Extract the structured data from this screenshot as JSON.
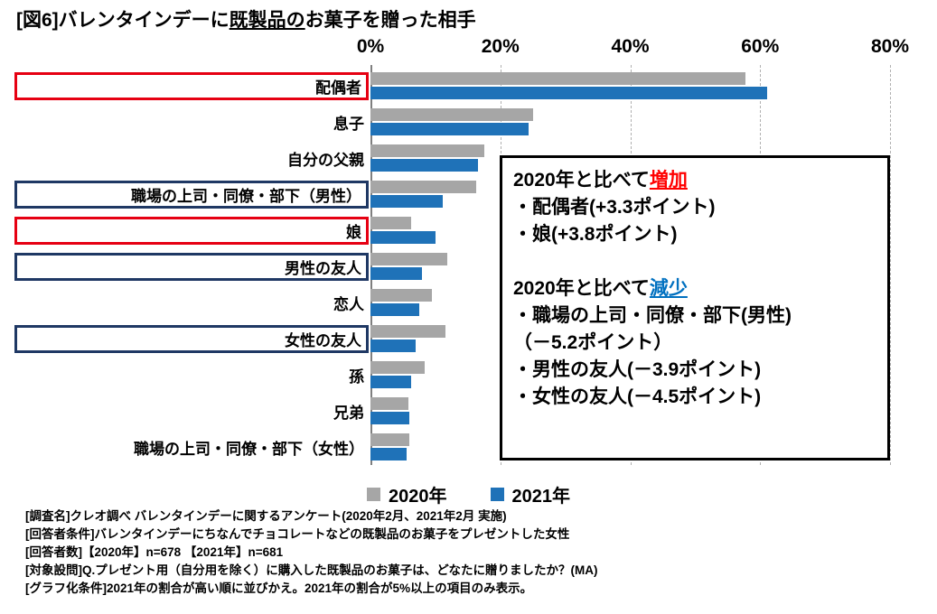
{
  "title": {
    "prefix": "[図6]バレンタインデーに",
    "underlined": "既製品の",
    "suffix": "お菓子を贈った相手"
  },
  "colors": {
    "bar_2020": "#a6a6a6",
    "bar_2021": "#1f72b8",
    "box_red": "#e60012",
    "box_navy": "#1f3864",
    "increase": "#ff0000",
    "decrease": "#0070c0",
    "grid": "#b0b0b0"
  },
  "chart_data": {
    "type": "bar",
    "orientation": "horizontal",
    "title": "[図6]バレンタインデーに既製品のお菓子を贈った相手",
    "x_unit": "%",
    "xlim": [
      0,
      80
    ],
    "x_ticks": [
      0,
      20,
      40,
      60,
      80
    ],
    "x_tick_labels": [
      "0%",
      "20%",
      "40%",
      "60%",
      "80%"
    ],
    "grid": "dashed-vertical",
    "legend_position": "bottom",
    "categories": [
      "配偶者",
      "息子",
      "自分の父親",
      "職場の上司・同僚・部下（男性）",
      "娘",
      "男性の友人",
      "恋人",
      "女性の友人",
      "孫",
      "兄弟",
      "職場の上司・同僚・部下（女性）"
    ],
    "category_boxes": [
      "red",
      null,
      null,
      "navy",
      "red",
      "navy",
      null,
      "navy",
      null,
      null,
      null
    ],
    "series": [
      {
        "name": "2020年",
        "color": "#a6a6a6",
        "values": [
          57.8,
          25.0,
          17.5,
          16.3,
          6.2,
          11.8,
          9.4,
          11.5,
          8.3,
          5.9,
          6.0
        ]
      },
      {
        "name": "2021年",
        "color": "#1f72b8",
        "values": [
          61.1,
          24.4,
          16.5,
          11.1,
          10.0,
          7.9,
          7.5,
          7.0,
          6.3,
          6.0,
          5.5
        ]
      }
    ]
  },
  "annotation": {
    "increase_heading_prefix": "2020年と比べて",
    "increase_keyword": "増加",
    "increase_items": [
      "・配偶者(+3.3ポイント)",
      "・娘(+3.8ポイント)"
    ],
    "decrease_heading_prefix": "2020年と比べて",
    "decrease_keyword": "減少",
    "decrease_items": [
      "・職場の上司・同僚・部下(男性)",
      "（－5.2ポイント）",
      "・男性の友人(－3.9ポイント)",
      "・女性の友人(－4.5ポイント)"
    ]
  },
  "footnotes": [
    "[調査名]クレオ調べ バレンタインデーに関するアンケート(2020年2月、2021年2月 実施)",
    "[回答者条件]バレンタインデーにちなんでチョコレートなどの既製品のお菓子をプレゼントした女性",
    "[回答者数]【2020年】n=678 【2021年】n=681",
    "[対象設問]Q.プレゼント用（自分用を除く）に購入した既製品のお菓子は、どなたに贈りましたか？(MA)",
    "[グラフ化条件]2021年の割合が高い順に並びかえ。2021年の割合が5%以上の項目のみ表示。"
  ]
}
